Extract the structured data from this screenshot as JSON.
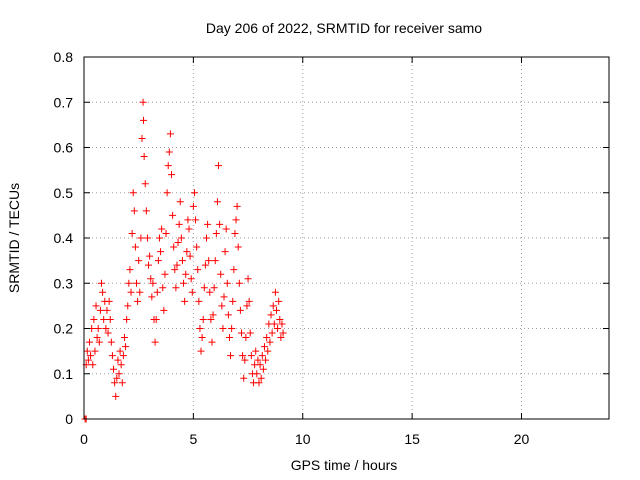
{
  "chart_data": {
    "type": "scatter",
    "title": "Day 206 of 2022, SRMTID for receiver samo",
    "xlabel": "GPS time / hours",
    "ylabel": "SRMTID / TECUs",
    "xlim": [
      0,
      24
    ],
    "ylim": [
      0,
      0.8
    ],
    "xticks": [
      0,
      5,
      10,
      15,
      20
    ],
    "yticks": [
      0,
      0.1,
      0.2,
      0.3,
      0.4,
      0.5,
      0.6,
      0.7,
      0.8
    ],
    "grid": true,
    "marker": "+",
    "series": [
      {
        "name": "SRMTID",
        "color": "#ff0000",
        "points": [
          [
            0.05,
            0.0
          ],
          [
            0.1,
            0.0
          ],
          [
            0.1,
            0.12
          ],
          [
            0.15,
            0.15
          ],
          [
            0.2,
            0.13
          ],
          [
            0.25,
            0.17
          ],
          [
            0.3,
            0.14
          ],
          [
            0.35,
            0.2
          ],
          [
            0.4,
            0.12
          ],
          [
            0.45,
            0.22
          ],
          [
            0.5,
            0.15
          ],
          [
            0.55,
            0.25
          ],
          [
            0.6,
            0.18
          ],
          [
            0.65,
            0.2
          ],
          [
            0.7,
            0.17
          ],
          [
            0.75,
            0.24
          ],
          [
            0.8,
            0.3
          ],
          [
            0.85,
            0.28
          ],
          [
            0.9,
            0.22
          ],
          [
            0.95,
            0.26
          ],
          [
            1.0,
            0.2
          ],
          [
            1.05,
            0.24
          ],
          [
            1.1,
            0.19
          ],
          [
            1.15,
            0.26
          ],
          [
            1.2,
            0.22
          ],
          [
            1.25,
            0.17
          ],
          [
            1.3,
            0.14
          ],
          [
            1.35,
            0.11
          ],
          [
            1.4,
            0.08
          ],
          [
            1.45,
            0.05
          ],
          [
            1.5,
            0.09
          ],
          [
            1.55,
            0.13
          ],
          [
            1.6,
            0.1
          ],
          [
            1.65,
            0.15
          ],
          [
            1.7,
            0.12
          ],
          [
            1.75,
            0.08
          ],
          [
            1.8,
            0.14
          ],
          [
            1.85,
            0.18
          ],
          [
            1.9,
            0.16
          ],
          [
            1.95,
            0.22
          ],
          [
            2.0,
            0.25
          ],
          [
            2.05,
            0.3
          ],
          [
            2.1,
            0.33
          ],
          [
            2.15,
            0.28
          ],
          [
            2.2,
            0.41
          ],
          [
            2.25,
            0.5
          ],
          [
            2.3,
            0.46
          ],
          [
            2.35,
            0.38
          ],
          [
            2.4,
            0.3
          ],
          [
            2.45,
            0.26
          ],
          [
            2.5,
            0.35
          ],
          [
            2.55,
            0.28
          ],
          [
            2.6,
            0.4
          ],
          [
            2.65,
            0.62
          ],
          [
            2.7,
            0.7
          ],
          [
            2.72,
            0.66
          ],
          [
            2.75,
            0.58
          ],
          [
            2.8,
            0.52
          ],
          [
            2.85,
            0.46
          ],
          [
            2.9,
            0.4
          ],
          [
            2.95,
            0.34
          ],
          [
            3.0,
            0.36
          ],
          [
            3.05,
            0.31
          ],
          [
            3.1,
            0.27
          ],
          [
            3.15,
            0.3
          ],
          [
            3.2,
            0.22
          ],
          [
            3.25,
            0.17
          ],
          [
            3.3,
            0.22
          ],
          [
            3.35,
            0.28
          ],
          [
            3.4,
            0.35
          ],
          [
            3.45,
            0.4
          ],
          [
            3.5,
            0.37
          ],
          [
            3.55,
            0.42
          ],
          [
            3.6,
            0.29
          ],
          [
            3.65,
            0.24
          ],
          [
            3.7,
            0.32
          ],
          [
            3.75,
            0.41
          ],
          [
            3.8,
            0.5
          ],
          [
            3.85,
            0.56
          ],
          [
            3.9,
            0.59
          ],
          [
            3.95,
            0.63
          ],
          [
            4.0,
            0.54
          ],
          [
            4.05,
            0.45
          ],
          [
            4.1,
            0.38
          ],
          [
            4.15,
            0.33
          ],
          [
            4.2,
            0.29
          ],
          [
            4.25,
            0.34
          ],
          [
            4.3,
            0.39
          ],
          [
            4.35,
            0.43
          ],
          [
            4.4,
            0.48
          ],
          [
            4.45,
            0.4
          ],
          [
            4.5,
            0.35
          ],
          [
            4.55,
            0.3
          ],
          [
            4.6,
            0.26
          ],
          [
            4.65,
            0.32
          ],
          [
            4.7,
            0.37
          ],
          [
            4.75,
            0.44
          ],
          [
            4.8,
            0.42
          ],
          [
            4.85,
            0.36
          ],
          [
            4.9,
            0.31
          ],
          [
            4.95,
            0.28
          ],
          [
            5.0,
            0.47
          ],
          [
            5.05,
            0.5
          ],
          [
            5.1,
            0.44
          ],
          [
            5.15,
            0.38
          ],
          [
            5.2,
            0.33
          ],
          [
            5.25,
            0.26
          ],
          [
            5.3,
            0.2
          ],
          [
            5.35,
            0.15
          ],
          [
            5.4,
            0.18
          ],
          [
            5.45,
            0.22
          ],
          [
            5.5,
            0.29
          ],
          [
            5.55,
            0.34
          ],
          [
            5.6,
            0.4
          ],
          [
            5.65,
            0.43
          ],
          [
            5.7,
            0.35
          ],
          [
            5.75,
            0.28
          ],
          [
            5.8,
            0.22
          ],
          [
            5.85,
            0.17
          ],
          [
            5.9,
            0.23
          ],
          [
            5.95,
            0.29
          ],
          [
            6.0,
            0.35
          ],
          [
            6.05,
            0.41
          ],
          [
            6.1,
            0.48
          ],
          [
            6.15,
            0.56
          ],
          [
            6.2,
            0.43
          ],
          [
            6.25,
            0.32
          ],
          [
            6.3,
            0.25
          ],
          [
            6.35,
            0.2
          ],
          [
            6.4,
            0.27
          ],
          [
            6.45,
            0.37
          ],
          [
            6.5,
            0.42
          ],
          [
            6.55,
            0.3
          ],
          [
            6.6,
            0.23
          ],
          [
            6.65,
            0.18
          ],
          [
            6.7,
            0.14
          ],
          [
            6.75,
            0.2
          ],
          [
            6.8,
            0.26
          ],
          [
            6.85,
            0.33
          ],
          [
            6.9,
            0.41
          ],
          [
            6.95,
            0.44
          ],
          [
            7.0,
            0.47
          ],
          [
            7.05,
            0.38
          ],
          [
            7.1,
            0.3
          ],
          [
            7.15,
            0.24
          ],
          [
            7.2,
            0.19
          ],
          [
            7.25,
            0.14
          ],
          [
            7.3,
            0.09
          ],
          [
            7.35,
            0.13
          ],
          [
            7.4,
            0.18
          ],
          [
            7.45,
            0.25
          ],
          [
            7.5,
            0.31
          ],
          [
            7.55,
            0.26
          ],
          [
            7.6,
            0.19
          ],
          [
            7.65,
            0.14
          ],
          [
            7.7,
            0.1
          ],
          [
            7.75,
            0.08
          ],
          [
            7.8,
            0.12
          ],
          [
            7.85,
            0.15
          ],
          [
            7.9,
            0.1
          ],
          [
            7.95,
            0.13
          ],
          [
            8.0,
            0.08
          ],
          [
            8.05,
            0.12
          ],
          [
            8.1,
            0.09
          ],
          [
            8.15,
            0.14
          ],
          [
            8.2,
            0.11
          ],
          [
            8.25,
            0.16
          ],
          [
            8.3,
            0.13
          ],
          [
            8.35,
            0.18
          ],
          [
            8.4,
            0.15
          ],
          [
            8.45,
            0.21
          ],
          [
            8.5,
            0.17
          ],
          [
            8.55,
            0.23
          ],
          [
            8.6,
            0.19
          ],
          [
            8.65,
            0.25
          ],
          [
            8.7,
            0.21
          ],
          [
            8.75,
            0.28
          ],
          [
            8.8,
            0.24
          ],
          [
            8.85,
            0.2
          ],
          [
            8.9,
            0.26
          ],
          [
            8.95,
            0.22
          ],
          [
            9.0,
            0.18
          ],
          [
            9.05,
            0.21
          ],
          [
            9.1,
            0.19
          ]
        ]
      }
    ]
  }
}
